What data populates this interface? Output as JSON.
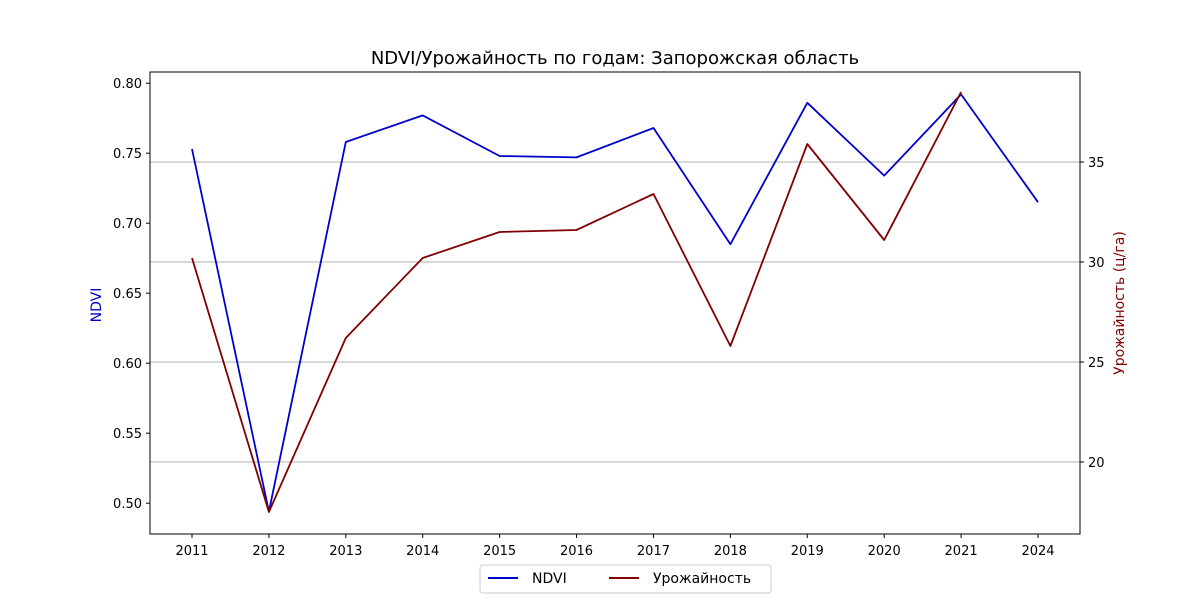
{
  "chart_data": {
    "type": "line",
    "title": "NDVI/Урожайность по годам: Запорожская область",
    "x": [
      2011,
      2012,
      2013,
      2014,
      2015,
      2016,
      2017,
      2018,
      2019,
      2020,
      2021,
      2024
    ],
    "x_tick_labels": [
      "2011",
      "2012",
      "2013",
      "2014",
      "2015",
      "2016",
      "2017",
      "2018",
      "2019",
      "2020",
      "2021",
      "2024"
    ],
    "xlabel": "",
    "ylabel_left": "NDVI",
    "ylabel_right": "Урожайность (ц/га)",
    "ylim_left": [
      0.478,
      0.808
    ],
    "ylim_right": [
      16.4,
      39.5
    ],
    "yticks_left": [
      "0.50",
      "0.55",
      "0.60",
      "0.65",
      "0.70",
      "0.75",
      "0.80"
    ],
    "yticks_right": [
      "20",
      "25",
      "30",
      "35"
    ],
    "grid": "horizontal lines at right-axis ticks",
    "legend_placement": "bottom-center, below plot",
    "series": [
      {
        "name": "NDVI",
        "axis": "left",
        "color": "#0000cc",
        "values": [
          0.753,
          0.494,
          0.758,
          0.777,
          0.748,
          0.747,
          0.768,
          0.685,
          0.786,
          0.734,
          0.792,
          0.715
        ]
      },
      {
        "name": "Урожайность",
        "axis": "right",
        "color": "#800000",
        "values": [
          30.2,
          17.5,
          26.2,
          30.2,
          31.5,
          31.6,
          33.4,
          25.8,
          35.9,
          31.1,
          38.5,
          null
        ]
      }
    ]
  }
}
